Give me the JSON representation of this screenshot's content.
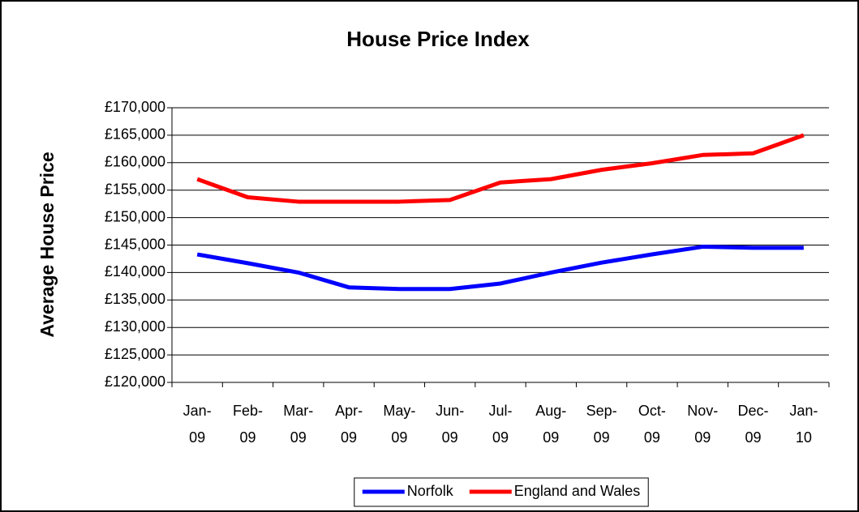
{
  "chart_data": {
    "type": "line",
    "title": "House Price Index",
    "y_label": "Average House Price",
    "categories": [
      "Jan-09",
      "Feb-09",
      "Mar-09",
      "Apr-09",
      "May-09",
      "Jun-09",
      "Jul-09",
      "Aug-09",
      "Sep-09",
      "Oct-09",
      "Nov-09",
      "Dec-09",
      "Jan-10"
    ],
    "series": [
      {
        "name": "Norfolk",
        "color": "#0000ff",
        "values": [
          143300,
          141700,
          140000,
          137300,
          137000,
          137000,
          138000,
          140000,
          141800,
          143300,
          144700,
          144500,
          144500
        ]
      },
      {
        "name": "England and Wales",
        "color": "#ff0000",
        "values": [
          157000,
          153700,
          152900,
          152900,
          152900,
          153200,
          156400,
          157000,
          158700,
          159900,
          161400,
          161700,
          165000
        ]
      }
    ],
    "ylim": [
      120000,
      170000
    ],
    "yticks": [
      {
        "value": 120000,
        "label": "£120,000"
      },
      {
        "value": 125000,
        "label": "£125,000"
      },
      {
        "value": 130000,
        "label": "£130,000"
      },
      {
        "value": 135000,
        "label": "£135,000"
      },
      {
        "value": 140000,
        "label": "£140,000"
      },
      {
        "value": 145000,
        "label": "£145,000"
      },
      {
        "value": 150000,
        "label": "£150,000"
      },
      {
        "value": 155000,
        "label": "£155,000"
      },
      {
        "value": 160000,
        "label": "£160,000"
      },
      {
        "value": 165000,
        "label": "£165,000"
      },
      {
        "value": 170000,
        "label": "£170,000"
      }
    ],
    "grid": true,
    "legend": "bottom"
  }
}
